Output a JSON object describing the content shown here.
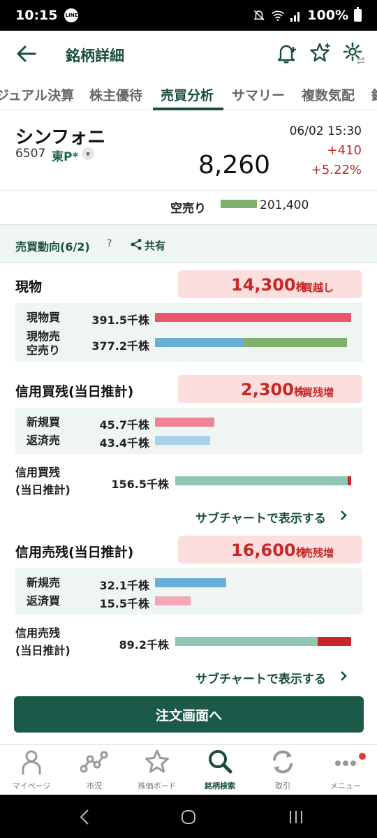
{
  "status_bar": {
    "time": "10:15",
    "app_badge": "LINE",
    "battery": "100%"
  },
  "header": {
    "title": "銘柄詳細"
  },
  "tabs": [
    {
      "label": "ジュアル決算"
    },
    {
      "label": "株主優待"
    },
    {
      "label": "売買分析"
    },
    {
      "label": "サマリー"
    },
    {
      "label": "複数気配"
    },
    {
      "label": "銘"
    }
  ],
  "stock": {
    "name": "シンフォニ",
    "code": "6507",
    "market": "東P*",
    "price": "8,260",
    "datetime": "06/02 15:30",
    "change": "+410",
    "change_pct": "+5.22%"
  },
  "short_sell": {
    "label": "空売り",
    "value": "201,400"
  },
  "trend": {
    "title": "売買動向(6/2)",
    "help": "?",
    "share": "共有"
  },
  "spot": {
    "title": "現物",
    "net": "14,300",
    "unit": "株",
    "net_label": "買越し",
    "rows": [
      {
        "label": "現物買",
        "value": "391.5千株"
      },
      {
        "label1": "現物売",
        "label2": "空売り",
        "value": "377.2千株"
      }
    ],
    "buy_share": 1.0,
    "sell_share": 0.463,
    "short_share": 0.537
  },
  "margin_buy": {
    "title": "信用買残(当日推計)",
    "net": "2,300",
    "unit": "株",
    "net_label": "買残増",
    "rows": [
      {
        "label": "新規買",
        "value": "45.7千株"
      },
      {
        "label": "返済売",
        "value": "43.4千株"
      }
    ],
    "balance_label1": "信用買残",
    "balance_label2": "(当日推計)",
    "balance_value": "156.5千株",
    "link": "サブチャートで表示する"
  },
  "margin_sell": {
    "title": "信用売残(当日推計)",
    "net": "16,600",
    "unit": "株",
    "net_label": "売残増",
    "rows": [
      {
        "label": "新規売",
        "value": "32.1千株"
      },
      {
        "label": "返済買",
        "value": "15.5千株"
      }
    ],
    "balance_label1": "信用売残",
    "balance_label2": "(当日推計)",
    "balance_value": "89.2千株",
    "link": "サブチャートで表示する"
  },
  "order_button": "注文画面へ",
  "bottom_nav": [
    {
      "label": "マイページ",
      "icon": "person-icon"
    },
    {
      "label": "市況",
      "icon": "market-chart-icon"
    },
    {
      "label": "株価ボード",
      "icon": "star-icon"
    },
    {
      "label": "銘柄検索",
      "icon": "search-icon"
    },
    {
      "label": "取引",
      "icon": "trade-cycle-icon"
    },
    {
      "label": "メニュー",
      "icon": "more-icon"
    }
  ],
  "colors": {
    "brand": "#1a4d40",
    "up": "#c62828",
    "buy_bar": "#e8566c",
    "sell_bar": "#6aaed6",
    "short_bar": "#7fb06c",
    "balance_bar": "#93c5b4"
  }
}
